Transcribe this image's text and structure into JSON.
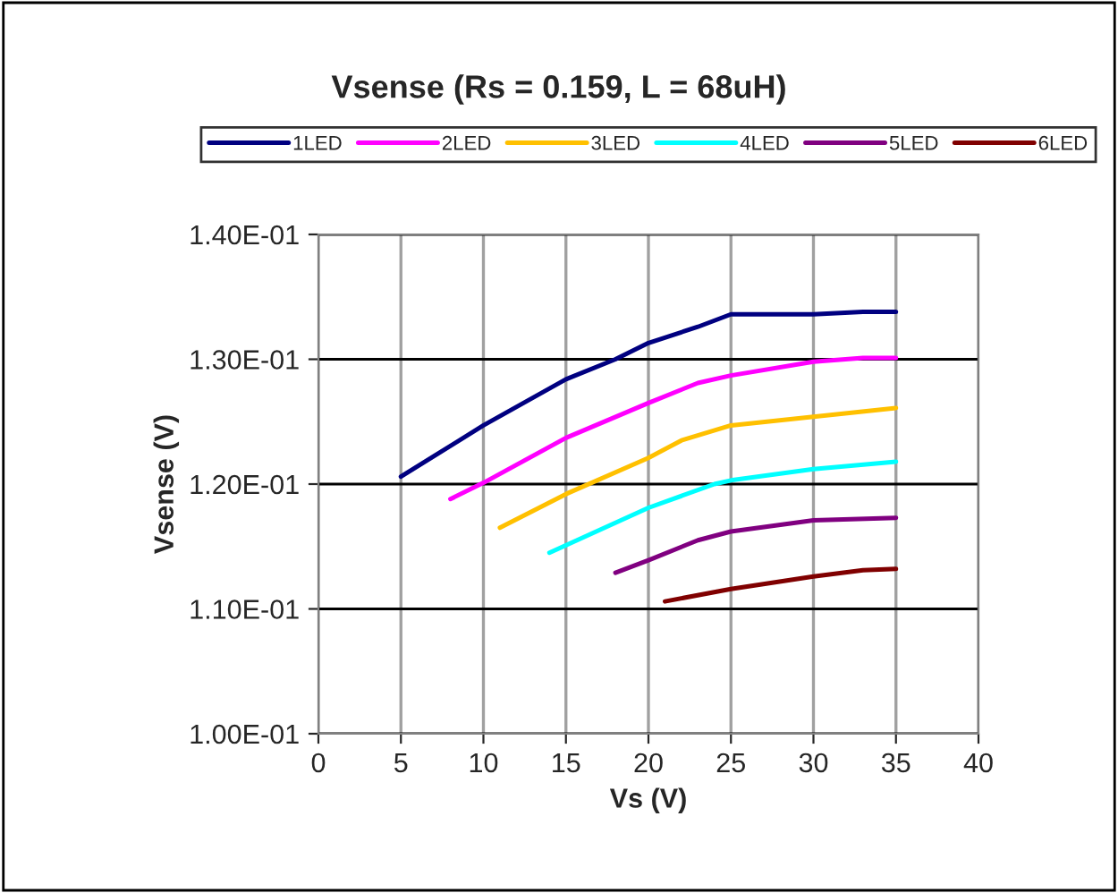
{
  "chart_data": {
    "type": "line",
    "title": "Vsense (Rs = 0.159, L = 68uH)",
    "xlabel": "Vs (V)",
    "ylabel": "Vsense (V)",
    "xlim": [
      0,
      40
    ],
    "xticks": [
      0,
      5,
      10,
      15,
      20,
      25,
      30,
      35,
      40
    ],
    "ylim": [
      0.1,
      0.14
    ],
    "yticks": [
      {
        "value": 0.1,
        "label": "1.00E-01"
      },
      {
        "value": 0.11,
        "label": "1.10E-01"
      },
      {
        "value": 0.12,
        "label": "1.20E-01"
      },
      {
        "value": 0.13,
        "label": "1.30E-01"
      },
      {
        "value": 0.14,
        "label": "1.40E-01"
      }
    ],
    "grid": true,
    "legend": "top",
    "marker": "none",
    "line_style": "solid",
    "series": [
      {
        "name": "1LED",
        "color": "#000080",
        "x": [
          5,
          10,
          15,
          18,
          20,
          23,
          25,
          30,
          33,
          35
        ],
        "values": [
          0.1206,
          0.1247,
          0.1284,
          0.13,
          0.1313,
          0.1326,
          0.1336,
          0.1336,
          0.1338,
          0.1338
        ]
      },
      {
        "name": "2LED",
        "color": "#ff00ff",
        "x": [
          8,
          10,
          15,
          20,
          23,
          25,
          30,
          33,
          35
        ],
        "values": [
          0.1188,
          0.1201,
          0.1237,
          0.1265,
          0.1281,
          0.1287,
          0.1298,
          0.1301,
          0.1301
        ]
      },
      {
        "name": "3LED",
        "color": "#ffc000",
        "x": [
          11,
          15,
          20,
          22,
          25,
          30,
          35
        ],
        "values": [
          0.1165,
          0.1192,
          0.1221,
          0.1235,
          0.1247,
          0.1254,
          0.1261
        ]
      },
      {
        "name": "4LED",
        "color": "#00ffff",
        "x": [
          14,
          20,
          24,
          25,
          30,
          35
        ],
        "values": [
          0.1145,
          0.1181,
          0.12,
          0.1203,
          0.1212,
          0.1218
        ]
      },
      {
        "name": "5LED",
        "color": "#800080",
        "x": [
          18,
          20,
          23,
          25,
          30,
          35
        ],
        "values": [
          0.1129,
          0.1139,
          0.1155,
          0.1162,
          0.1171,
          0.1173
        ]
      },
      {
        "name": "6LED",
        "color": "#800000",
        "x": [
          21,
          25,
          30,
          33,
          35
        ],
        "values": [
          0.1106,
          0.1116,
          0.1126,
          0.1131,
          0.1132
        ]
      }
    ]
  }
}
